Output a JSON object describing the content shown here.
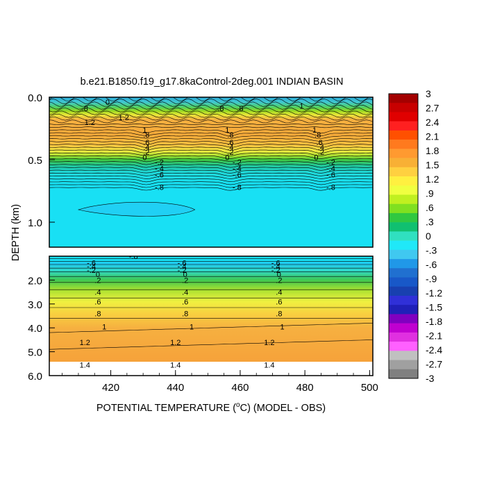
{
  "chart_data": {
    "type": "heatmap",
    "title": "b.e21.B1850.f19_g17.8kaControl-2deg.001 INDIAN BASIN",
    "xlabel_prefix": "POTENTIAL TEMPERATURE (",
    "xlabel_unit": "o",
    "xlabel_suffix": "C) (MODEL - OBS)",
    "ylabel": "DEPTH (km)",
    "xlim": [
      401,
      501
    ],
    "x_ticks": [
      "420",
      "440",
      "460",
      "480",
      "500"
    ],
    "x_tick_values": [
      420,
      440,
      460,
      480,
      500
    ],
    "upper_panel": {
      "ylim": [
        0.0,
        1.2
      ],
      "y_ticks": [
        "0.0",
        "0.5",
        "1.0"
      ],
      "y_tick_values": [
        0.0,
        0.5,
        1.0
      ]
    },
    "lower_panel": {
      "ylim": [
        1.0,
        6.0
      ],
      "y_ticks": [
        "2.0",
        "3.0",
        "4.0",
        "5.0",
        "6.0"
      ],
      "y_tick_values": [
        2.0,
        3.0,
        4.0,
        5.0,
        6.0
      ]
    },
    "colorbar_levels": [
      "3",
      "2.7",
      "2.4",
      "2.1",
      "1.8",
      "1.5",
      "1.2",
      ".9",
      ".6",
      ".3",
      "0",
      "-.3",
      "-.6",
      "-.9",
      "-1.2",
      "-1.5",
      "-1.8",
      "-2.1",
      "-2.4",
      "-2.7",
      "-3"
    ],
    "colorbar_colors": [
      "#a40000",
      "#c80000",
      "#e00000",
      "#ff2020",
      "#ff5000",
      "#ff7a1e",
      "#ff9a30",
      "#f8b035",
      "#ffd040",
      "#fff040",
      "#f0ff40",
      "#c0f020",
      "#80e020",
      "#30c840",
      "#10c070",
      "#30e0c0",
      "#20e8f8",
      "#40c8f0",
      "#2098e8",
      "#2070d0",
      "#1858c8",
      "#1840b0",
      "#3030d8",
      "#2020b8",
      "#8000c0",
      "#c000d0",
      "#e030e0",
      "#ff60ff",
      "#c0c0c0",
      "#a0a0a0",
      "#808080"
    ],
    "profile_colors": [
      {
        "depth": 0.0,
        "color": "#2aa8d8"
      },
      {
        "depth": 0.04,
        "color": "#40c8d0"
      },
      {
        "depth": 0.08,
        "color": "#50d060"
      },
      {
        "depth": 0.11,
        "color": "#98d820"
      },
      {
        "depth": 0.14,
        "color": "#e8e838"
      },
      {
        "depth": 0.18,
        "color": "#f6b040"
      },
      {
        "depth": 0.3,
        "color": "#f6aa3a"
      },
      {
        "depth": 0.38,
        "color": "#f8c040"
      },
      {
        "depth": 0.43,
        "color": "#eee840"
      },
      {
        "depth": 0.47,
        "color": "#a8e030"
      },
      {
        "depth": 0.5,
        "color": "#40c840"
      },
      {
        "depth": 0.55,
        "color": "#20c8a0"
      },
      {
        "depth": 0.6,
        "color": "#20d8d8"
      },
      {
        "depth": 0.7,
        "color": "#18e0f4"
      },
      {
        "depth": 1.2,
        "color": "#18e0f4"
      },
      {
        "depth": 1.3,
        "color": "#20c8f0"
      },
      {
        "depth": 1.6,
        "color": "#30d8c8"
      },
      {
        "depth": 2.0,
        "color": "#40c850"
      },
      {
        "depth": 2.4,
        "color": "#a8e030"
      },
      {
        "depth": 2.9,
        "color": "#f0f040"
      },
      {
        "depth": 3.4,
        "color": "#f8d040"
      },
      {
        "depth": 4.0,
        "color": "#f6b040"
      },
      {
        "depth": 5.4,
        "color": "#f6a23a"
      }
    ],
    "contour_labels_upper": [
      {
        "x": 413.5,
        "d": 0.2,
        "text": "1.2"
      },
      {
        "x": 430.5,
        "d": 0.26,
        "text": "1"
      },
      {
        "x": 431,
        "d": 0.3,
        "text": ".8"
      },
      {
        "x": 431,
        "d": 0.36,
        "text": ".6"
      },
      {
        "x": 431,
        "d": 0.4,
        "text": ".4"
      },
      {
        "x": 431,
        "d": 0.44,
        "text": ".2"
      },
      {
        "x": 430.5,
        "d": 0.48,
        "text": "0"
      },
      {
        "x": 435,
        "d": 0.52,
        "text": "-.2"
      },
      {
        "x": 435,
        "d": 0.57,
        "text": "-.4"
      },
      {
        "x": 435,
        "d": 0.62,
        "text": "-.6"
      },
      {
        "x": 435,
        "d": 0.72,
        "text": "-.8"
      },
      {
        "x": 456,
        "d": 0.26,
        "text": "1"
      },
      {
        "x": 457,
        "d": 0.3,
        "text": ".8"
      },
      {
        "x": 457,
        "d": 0.36,
        "text": ".6"
      },
      {
        "x": 457,
        "d": 0.4,
        "text": ".4"
      },
      {
        "x": 457,
        "d": 0.44,
        "text": ".2"
      },
      {
        "x": 456,
        "d": 0.48,
        "text": "0"
      },
      {
        "x": 459,
        "d": 0.52,
        "text": "-.2"
      },
      {
        "x": 459,
        "d": 0.57,
        "text": "-.4"
      },
      {
        "x": 459,
        "d": 0.62,
        "text": "-.6"
      },
      {
        "x": 459,
        "d": 0.72,
        "text": "-.8"
      },
      {
        "x": 483,
        "d": 0.26,
        "text": "1"
      },
      {
        "x": 484,
        "d": 0.3,
        "text": ".8"
      },
      {
        "x": 484.5,
        "d": 0.36,
        "text": ".6"
      },
      {
        "x": 485,
        "d": 0.4,
        "text": ".4"
      },
      {
        "x": 485,
        "d": 0.44,
        "text": ".2"
      },
      {
        "x": 483.5,
        "d": 0.48,
        "text": "0"
      },
      {
        "x": 488,
        "d": 0.52,
        "text": "-.2"
      },
      {
        "x": 488,
        "d": 0.57,
        "text": "-.4"
      },
      {
        "x": 488,
        "d": 0.62,
        "text": "-.6"
      },
      {
        "x": 488,
        "d": 0.72,
        "text": "-.8"
      },
      {
        "x": 424,
        "d": 0.16,
        "text": "1.2"
      },
      {
        "x": 412,
        "d": 0.09,
        "text": ".8"
      },
      {
        "x": 419,
        "d": 0.04,
        "text": "0"
      },
      {
        "x": 454,
        "d": 0.09,
        "text": ".8"
      },
      {
        "x": 460,
        "d": 0.09,
        "text": ".8"
      },
      {
        "x": 479,
        "d": 0.07,
        "text": "1"
      }
    ],
    "contour_labels_lower": [
      {
        "x": 427,
        "d": 1.0,
        "text": "-.8"
      },
      {
        "x": 414,
        "d": 1.28,
        "text": "-.6"
      },
      {
        "x": 414,
        "d": 1.42,
        "text": "-.4"
      },
      {
        "x": 414,
        "d": 1.58,
        "text": "-.2"
      },
      {
        "x": 416,
        "d": 1.75,
        "text": "0"
      },
      {
        "x": 416,
        "d": 2.0,
        "text": ".2"
      },
      {
        "x": 416,
        "d": 2.5,
        "text": ".4"
      },
      {
        "x": 416,
        "d": 2.9,
        "text": ".6"
      },
      {
        "x": 416,
        "d": 3.4,
        "text": ".8"
      },
      {
        "x": 418,
        "d": 3.95,
        "text": "1"
      },
      {
        "x": 412,
        "d": 4.6,
        "text": "1.2"
      },
      {
        "x": 412,
        "d": 5.55,
        "text": "1.4"
      },
      {
        "x": 442,
        "d": 1.28,
        "text": "-.6"
      },
      {
        "x": 442,
        "d": 1.42,
        "text": "-.4"
      },
      {
        "x": 442,
        "d": 1.58,
        "text": "-.2"
      },
      {
        "x": 443,
        "d": 1.75,
        "text": "0"
      },
      {
        "x": 443,
        "d": 2.0,
        "text": ".2"
      },
      {
        "x": 443,
        "d": 2.5,
        "text": ".4"
      },
      {
        "x": 443,
        "d": 2.9,
        "text": ".6"
      },
      {
        "x": 443,
        "d": 3.4,
        "text": ".8"
      },
      {
        "x": 445,
        "d": 3.95,
        "text": "1"
      },
      {
        "x": 440,
        "d": 4.6,
        "text": "1.2"
      },
      {
        "x": 440,
        "d": 5.55,
        "text": "1.4"
      },
      {
        "x": 471,
        "d": 1.28,
        "text": "-.6"
      },
      {
        "x": 471,
        "d": 1.42,
        "text": "-.4"
      },
      {
        "x": 471,
        "d": 1.58,
        "text": "-.2"
      },
      {
        "x": 472,
        "d": 1.75,
        "text": "0"
      },
      {
        "x": 472,
        "d": 2.0,
        "text": ".2"
      },
      {
        "x": 472,
        "d": 2.5,
        "text": ".4"
      },
      {
        "x": 472,
        "d": 2.9,
        "text": ".6"
      },
      {
        "x": 472,
        "d": 3.4,
        "text": ".8"
      },
      {
        "x": 473,
        "d": 3.95,
        "text": "1"
      },
      {
        "x": 469,
        "d": 4.6,
        "text": "1.2"
      },
      {
        "x": 469,
        "d": 5.55,
        "text": "1.4"
      }
    ]
  }
}
